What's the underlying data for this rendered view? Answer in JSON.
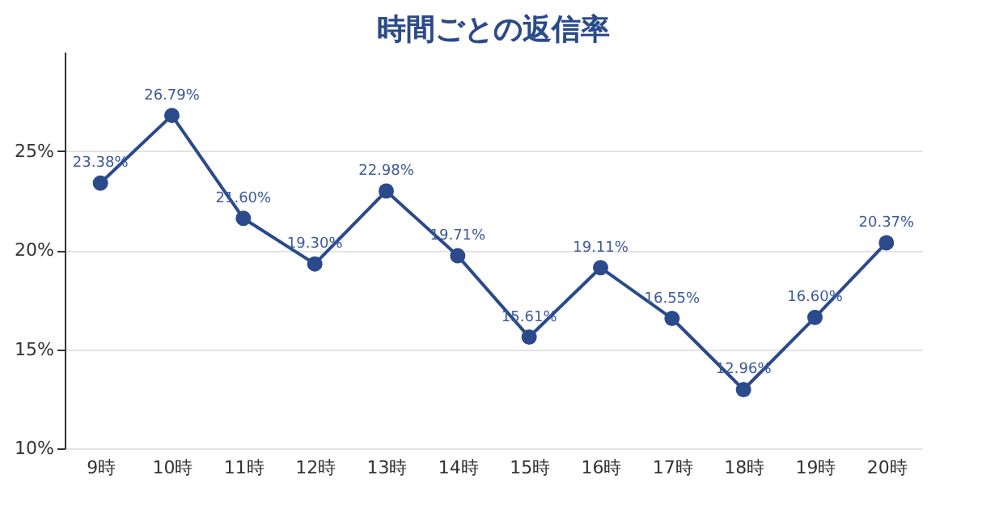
{
  "chart_data": {
    "type": "line",
    "title": "時間ごとの返信率",
    "categories": [
      "9時",
      "10時",
      "11時",
      "12時",
      "13時",
      "14時",
      "15時",
      "16時",
      "17時",
      "18時",
      "19時",
      "20時"
    ],
    "series": [
      {
        "color": "#2b4a8b",
        "values": [
          23.38,
          26.79,
          21.6,
          19.3,
          22.98,
          19.71,
          15.61,
          19.11,
          16.55,
          12.96,
          16.6,
          20.37
        ],
        "value_labels": [
          "23.38%",
          "26.79%",
          "21.60%",
          "19.30%",
          "22.98%",
          "19.71%",
          "15.61%",
          "19.11%",
          "16.55%",
          "12.96%",
          "16.60%",
          "20.37%"
        ]
      }
    ],
    "ylim": [
      10,
      30
    ],
    "yticks": [
      {
        "value": 10,
        "label": "10%"
      },
      {
        "value": 15,
        "label": "15%"
      },
      {
        "value": 20,
        "label": "20%"
      },
      {
        "value": 25,
        "label": "25%"
      }
    ],
    "grid": "y",
    "marker": "circle",
    "line_style": "solid"
  }
}
